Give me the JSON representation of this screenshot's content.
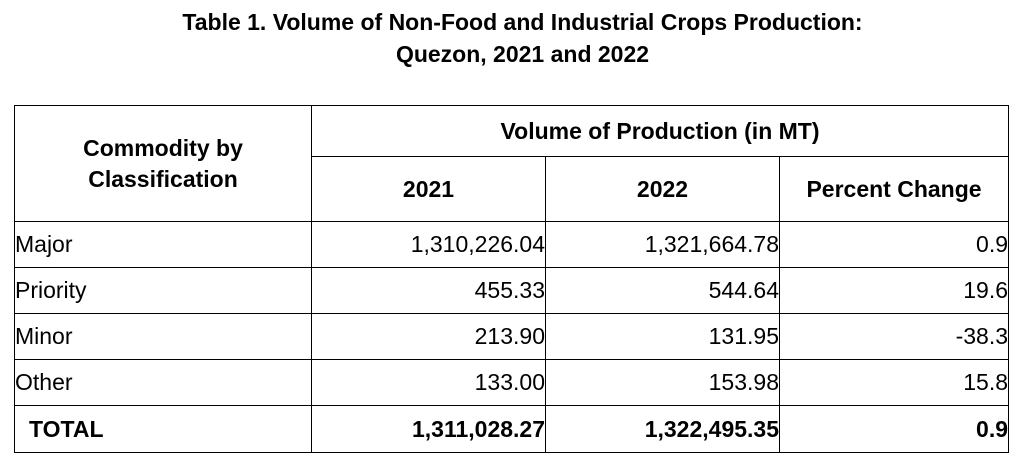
{
  "title": {
    "line1": "Table 1. Volume of Non-Food and Industrial Crops Production:",
    "line2": "Quezon, 2021 and 2022"
  },
  "table": {
    "commodity_header_line1": "Commodity by",
    "commodity_header_line2": "Classification",
    "group_header": "Volume of Production (in MT)",
    "columns": [
      "2021",
      "2022",
      "Percent Change"
    ],
    "rows": [
      {
        "label": "Major",
        "y2021": "1,310,226.04",
        "y2022": "1,321,664.78",
        "change": "0.9"
      },
      {
        "label": "Priority",
        "y2021": "455.33",
        "y2022": "544.64",
        "change": "19.6"
      },
      {
        "label": "Minor",
        "y2021": "213.90",
        "y2022": "131.95",
        "change": "-38.3"
      },
      {
        "label": "Other",
        "y2021": "133.00",
        "y2022": "153.98",
        "change": "15.8"
      }
    ],
    "total": {
      "label": "TOTAL",
      "y2021": "1,311,028.27",
      "y2022": "1,322,495.35",
      "change": "0.9"
    }
  }
}
